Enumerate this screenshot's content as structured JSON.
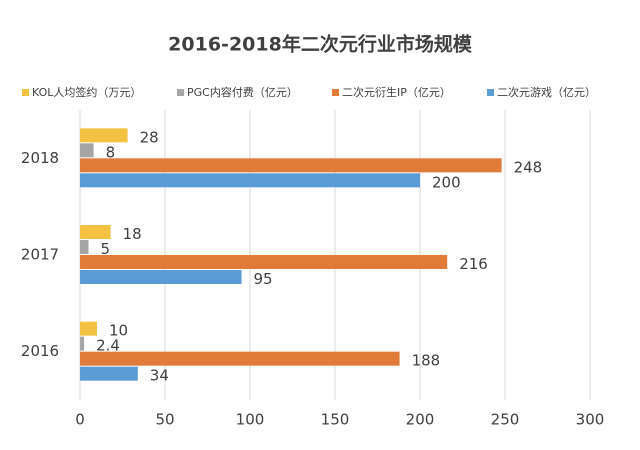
{
  "chart_data": {
    "type": "bar",
    "orientation": "horizontal",
    "title": "2016-2018年二次元行业市场规模",
    "categories": [
      "2016",
      "2017",
      "2018"
    ],
    "series": [
      {
        "name": "KOL人均签约（万元）",
        "color": "#f4c243",
        "values": [
          10,
          18,
          28
        ]
      },
      {
        "name": "PGC内容付费（亿元）",
        "color": "#a5a5a5",
        "values": [
          2.4,
          5,
          8
        ]
      },
      {
        "name": "二次元衍生IP（亿元）",
        "color": "#e07b3a",
        "values": [
          188,
          216,
          248
        ]
      },
      {
        "name": "二次元游戏（亿元）",
        "color": "#5b9bd5",
        "values": [
          34,
          95,
          200
        ]
      }
    ],
    "xlim": [
      0,
      300
    ],
    "xticks": [
      0,
      50,
      100,
      150,
      200,
      250,
      300
    ],
    "grid": true,
    "legend": "top"
  }
}
